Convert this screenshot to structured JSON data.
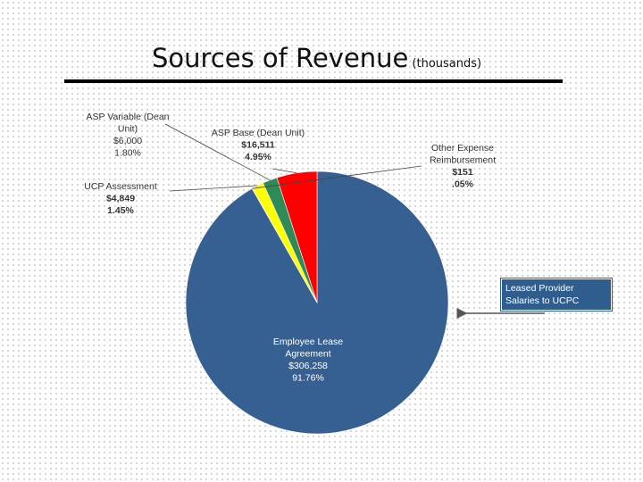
{
  "page": {
    "title_main": "Sources of Revenue",
    "title_sub": "(thousands)"
  },
  "callout": {
    "line1": "Leased Provider",
    "line2": "Salaries to UCPC"
  },
  "chart_data": {
    "type": "pie",
    "title": "Sources of Revenue (thousands)",
    "slices": [
      {
        "label": [
          "Employee Lease",
          "Agreement"
        ],
        "value_label": "$306,258",
        "pct_label": "91.76%",
        "value": 306258,
        "percent": 91.76,
        "color": "#376092"
      },
      {
        "label": [
          "Other Expense",
          "Reimbursement"
        ],
        "value_label": "$151",
        "pct_label": ".05%",
        "value": 151,
        "percent": 0.05,
        "color": "#4f81bd"
      },
      {
        "label": [
          "UCP Assessment"
        ],
        "value_label": "$4,849",
        "pct_label": "1.45%",
        "value": 4849,
        "percent": 1.45,
        "color": "#ffff00"
      },
      {
        "label": [
          "ASP Variable (Dean",
          "Unit)"
        ],
        "value_label": "$6,000",
        "pct_label": "1.80%",
        "value": 6000,
        "percent": 1.8,
        "color": "#2e8b57"
      },
      {
        "label": [
          "ASP Base (Dean Unit)"
        ],
        "value_label": "$16,511",
        "pct_label": "4.95%",
        "value": 16511,
        "percent": 4.95,
        "color": "#ff0000"
      }
    ]
  }
}
